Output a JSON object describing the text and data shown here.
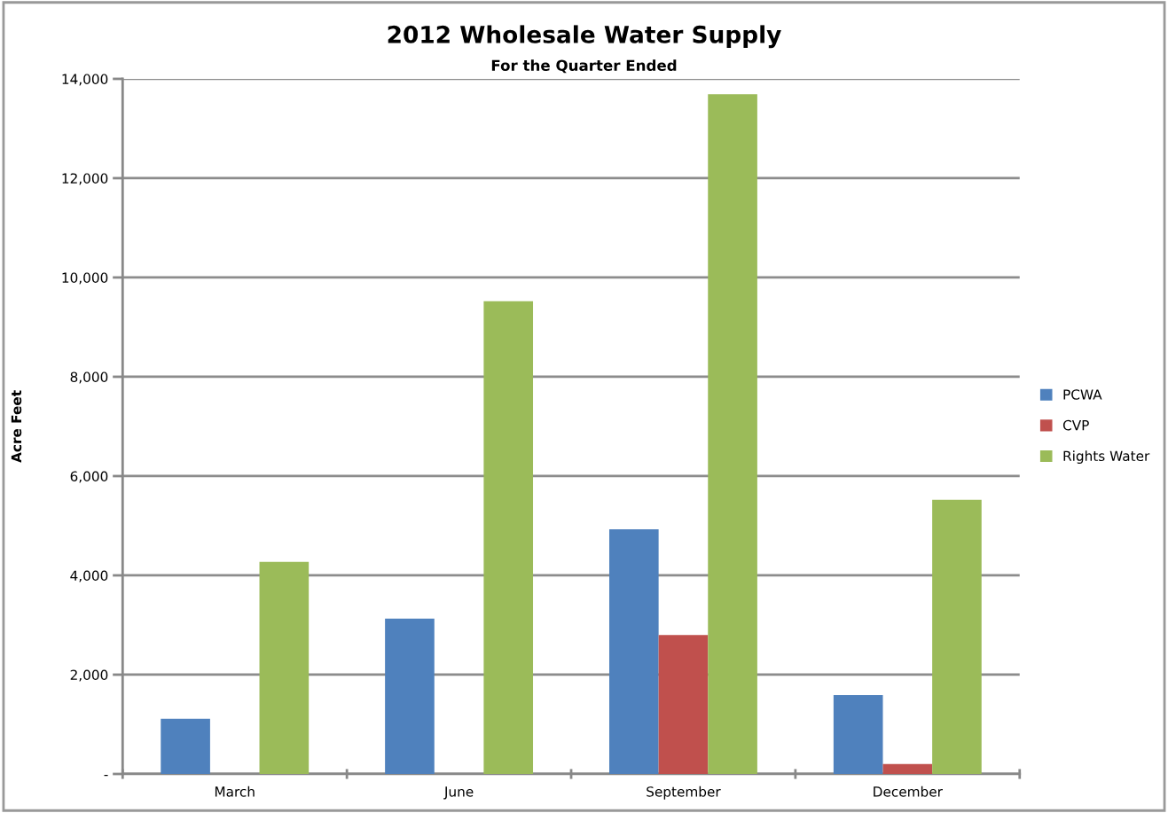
{
  "chart_data": {
    "type": "bar",
    "title": "2012 Wholesale Water Supply",
    "subtitle": "For the Quarter Ended",
    "ylabel": "Acre Feet",
    "categories": [
      "March",
      "June",
      "September",
      "December"
    ],
    "series": [
      {
        "name": "PCWA",
        "color": "#4f81bd",
        "values": [
          1110,
          3130,
          4930,
          1590
        ]
      },
      {
        "name": "CVP",
        "color": "#c0504d",
        "values": [
          0,
          0,
          2800,
          200
        ]
      },
      {
        "name": "Rights Water",
        "color": "#9bbb59",
        "values": [
          4270,
          9520,
          13690,
          5520
        ]
      }
    ],
    "ylim": [
      0,
      14000
    ],
    "yticks": [
      {
        "value": 0,
        "label": "-"
      },
      {
        "value": 2000,
        "label": "2,000"
      },
      {
        "value": 4000,
        "label": "4,000"
      },
      {
        "value": 6000,
        "label": "6,000"
      },
      {
        "value": 8000,
        "label": "8,000"
      },
      {
        "value": 10000,
        "label": "10,000"
      },
      {
        "value": 12000,
        "label": "12,000"
      },
      {
        "value": 14000,
        "label": "14,000"
      }
    ],
    "grid": "y",
    "legend": "right"
  }
}
